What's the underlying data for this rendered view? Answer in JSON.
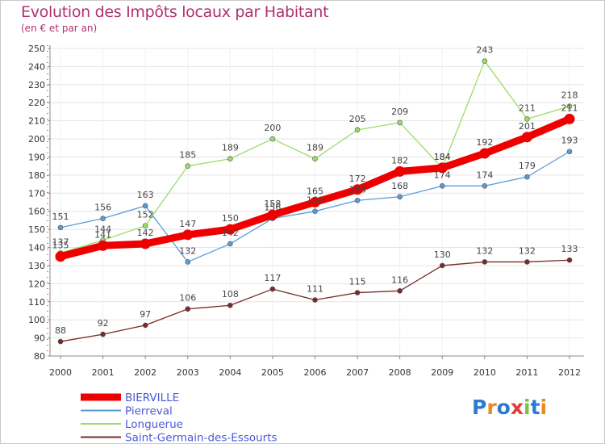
{
  "header": {
    "title": "Evolution des Impôts locaux par Habitant",
    "subtitle": "(en € et par an)"
  },
  "brand": {
    "logo_text": "Proxiti"
  },
  "colors": {
    "title": "#b03070",
    "legend_text": "#4a5ad8",
    "grid": "#e4e4e4"
  },
  "chart_data": {
    "type": "line",
    "title": "Evolution des Impôts locaux par Habitant",
    "subtitle": "(en € et par an)",
    "xlabel": "",
    "ylabel": "",
    "x": [
      "2000",
      "2001",
      "2002",
      "2003",
      "2004",
      "2005",
      "2006",
      "2007",
      "2008",
      "2009",
      "2010",
      "2011",
      "2012"
    ],
    "ylim": [
      80,
      250
    ],
    "yticks": [
      80,
      90,
      100,
      110,
      120,
      130,
      140,
      150,
      160,
      170,
      180,
      190,
      200,
      210,
      220,
      230,
      240,
      250
    ],
    "grid": true,
    "legend_position": "bottom-left",
    "series": [
      {
        "name": "BIERVILLE",
        "color": "#ee0000",
        "values": [
          135,
          141,
          142,
          147,
          150,
          158,
          165,
          172,
          182,
          184,
          192,
          201,
          211
        ]
      },
      {
        "name": "Pierreval",
        "color": "#5a9bd5",
        "values": [
          151,
          156,
          163,
          132,
          142,
          156,
          160,
          166,
          168,
          174,
          174,
          179,
          193
        ]
      },
      {
        "name": "Longuerue",
        "color": "#99dd66",
        "values": [
          137,
          144,
          152,
          185,
          189,
          200,
          189,
          205,
          209,
          184,
          243,
          211,
          218
        ]
      },
      {
        "name": "Saint-Germain-des-Essourts",
        "color": "#7a2a2a",
        "values": [
          88,
          92,
          97,
          106,
          108,
          117,
          111,
          115,
          116,
          130,
          132,
          132,
          133
        ]
      }
    ]
  }
}
